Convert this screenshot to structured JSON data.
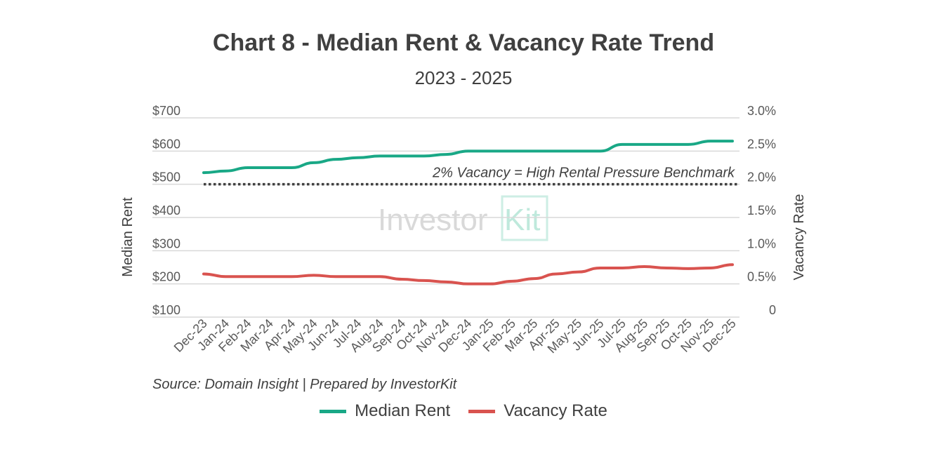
{
  "title": "Chart 8 - Median Rent & Vacancy Rate Trend",
  "subtitle": "2023 - 2025",
  "source": "Source: Domain Insight | Prepared by InvestorKit",
  "watermark": {
    "text_a": "Investor",
    "text_b": "Kit"
  },
  "colors": {
    "rent": "#19a886",
    "vacancy": "#d9534f",
    "grid": "#d9d9d9",
    "benchmark": "#404040"
  },
  "chart_data": {
    "type": "line",
    "categories": [
      "Dec-23",
      "Jan-24",
      "Feb-24",
      "Mar-24",
      "Apr-24",
      "May-24",
      "Jun-24",
      "Jul-24",
      "Aug-24",
      "Sep-24",
      "Oct-24",
      "Nov-24",
      "Dec-24",
      "Jan-25",
      "Feb-25",
      "Mar-25",
      "Apr-25",
      "May-25",
      "Jun-25",
      "Jul-25",
      "Aug-25",
      "Sep-25",
      "Oct-25",
      "Nov-25",
      "Dec-25"
    ],
    "series": [
      {
        "name": "Median Rent",
        "axis": "left",
        "values": [
          535,
          540,
          550,
          550,
          550,
          565,
          575,
          580,
          585,
          585,
          585,
          590,
          600,
          600,
          600,
          600,
          600,
          600,
          600,
          620,
          620,
          620,
          620,
          630,
          630
        ]
      },
      {
        "name": "Vacancy Rate",
        "axis": "right",
        "values": [
          0.0065,
          0.0061,
          0.0061,
          0.0061,
          0.0061,
          0.0063,
          0.0061,
          0.0061,
          0.0061,
          0.0057,
          0.0055,
          0.0053,
          0.005,
          0.005,
          0.0054,
          0.0058,
          0.0065,
          0.0068,
          0.0074,
          0.0074,
          0.0076,
          0.0074,
          0.0073,
          0.0074,
          0.0079
        ]
      }
    ],
    "yleft": {
      "label": "Median Rent",
      "min": 100,
      "max": 700,
      "ticks": [
        "$100",
        "$200",
        "$300",
        "$400",
        "$500",
        "$600",
        "$700"
      ]
    },
    "yright": {
      "label": "Vacancy Rate",
      "min": 0,
      "max": 0.03,
      "ticks": [
        "0",
        "0.5%",
        "1.0%",
        "1.5%",
        "2.0%",
        "2.5%",
        "3.0%"
      ]
    },
    "benchmark": {
      "value": 0.02,
      "label": "2% Vacancy = High Rental Pressure Benchmark"
    },
    "grid": true,
    "legend": "bottom"
  }
}
